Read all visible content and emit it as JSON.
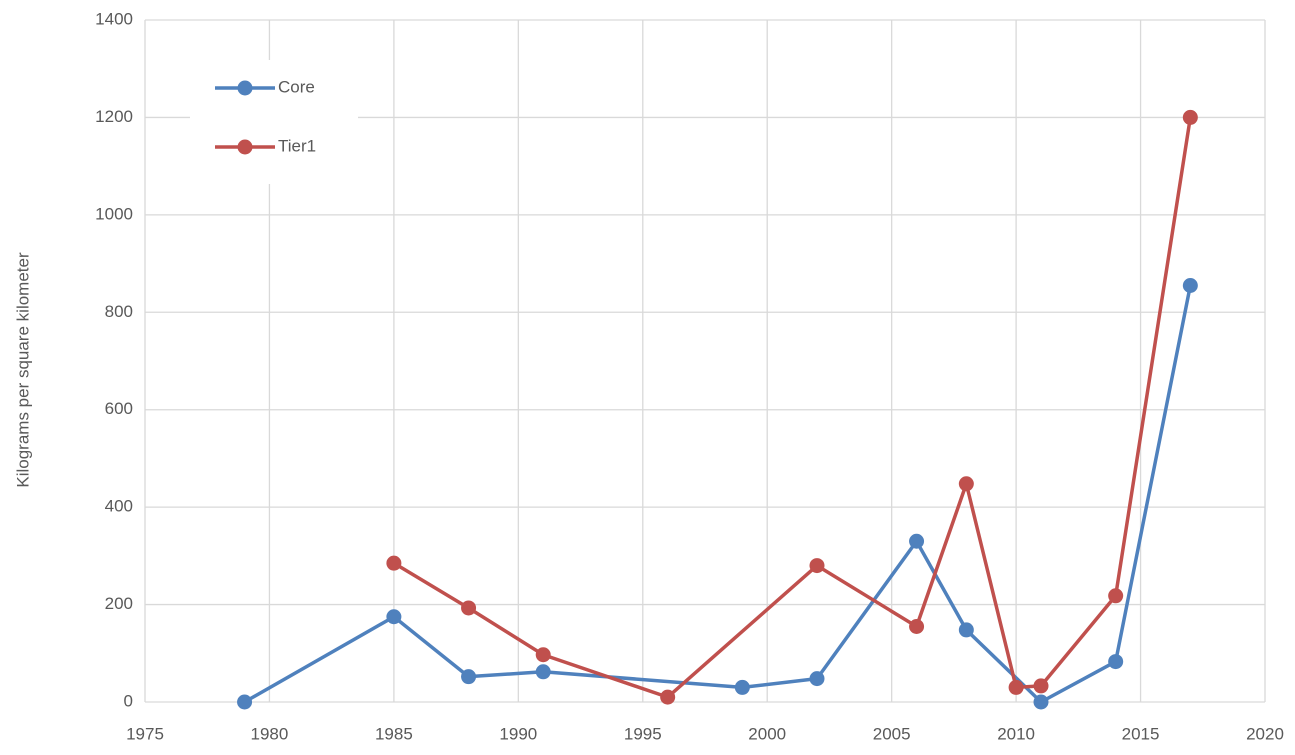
{
  "chart_data": {
    "type": "line",
    "y_label": "Kilograms per square kilometer",
    "xlim": [
      1975,
      2020
    ],
    "xticks": [
      1975,
      1980,
      1985,
      1990,
      1995,
      2000,
      2005,
      2010,
      2015,
      2020
    ],
    "ylim": [
      0,
      1400
    ],
    "yticks": [
      0,
      200,
      400,
      600,
      800,
      1000,
      1200,
      1400
    ],
    "grid": true,
    "legend": "upper left",
    "series": [
      {
        "name": "Core",
        "color": "#4f81bd",
        "x": [
          1979,
          1985,
          1988,
          1991,
          1999,
          2002,
          2006,
          2008,
          2011,
          2014,
          2017
        ],
        "values": [
          0,
          175,
          52,
          62,
          30,
          48,
          330,
          148,
          0,
          83,
          855
        ]
      },
      {
        "name": "Tier1",
        "color": "#c0504d",
        "x": [
          1985,
          1988,
          1991,
          1996,
          2002,
          2006,
          2008,
          2010,
          2011,
          2014,
          2017
        ],
        "values": [
          285,
          193,
          97,
          10,
          280,
          155,
          448,
          30,
          33,
          218,
          1200
        ]
      }
    ]
  }
}
